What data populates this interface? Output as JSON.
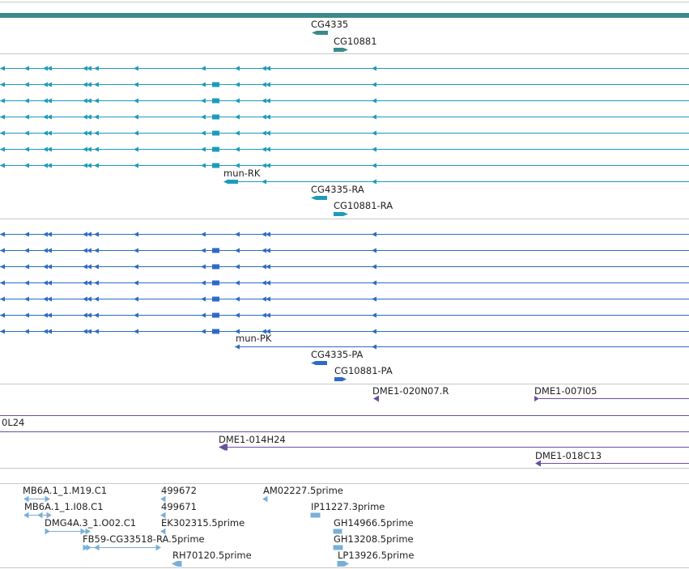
{
  "colors": {
    "gene": "#3a8a8c",
    "mrna": "#1d9bb8",
    "protein": "#2e6bc4",
    "clone": "#6a4fa3",
    "est": "#7ab0d8",
    "separator": "#c8c8c8"
  },
  "tracks": {
    "gene": {
      "labels": [
        "CG4335",
        "CG10881"
      ]
    },
    "mrna": {
      "labels": [
        "mun-RK",
        "CG4335-RA",
        "CG10881-RA"
      ]
    },
    "protein": {
      "labels": [
        "mun-PK",
        "CG4335-PA",
        "CG10881-PA"
      ]
    },
    "clones": {
      "labels": [
        "DME1-020N07.R",
        "DME1-007I05",
        "0L24",
        "DME1-014H24",
        "DME1-018C13"
      ]
    },
    "est": {
      "labels": [
        "MB6A.1_1.M19.C1",
        "499672",
        "AM02227.5prime",
        "MB6A.1_1.I08.C1",
        "499671",
        "IP11227.3prime",
        "DMG4A.3_1.O02.C1",
        "EK302315.5prime",
        "GH14966.5prime",
        "FB59-CG33518-RA.5prime",
        "GH13208.5prime",
        "RH70120.5prime",
        "LP13926.5prime"
      ]
    }
  }
}
